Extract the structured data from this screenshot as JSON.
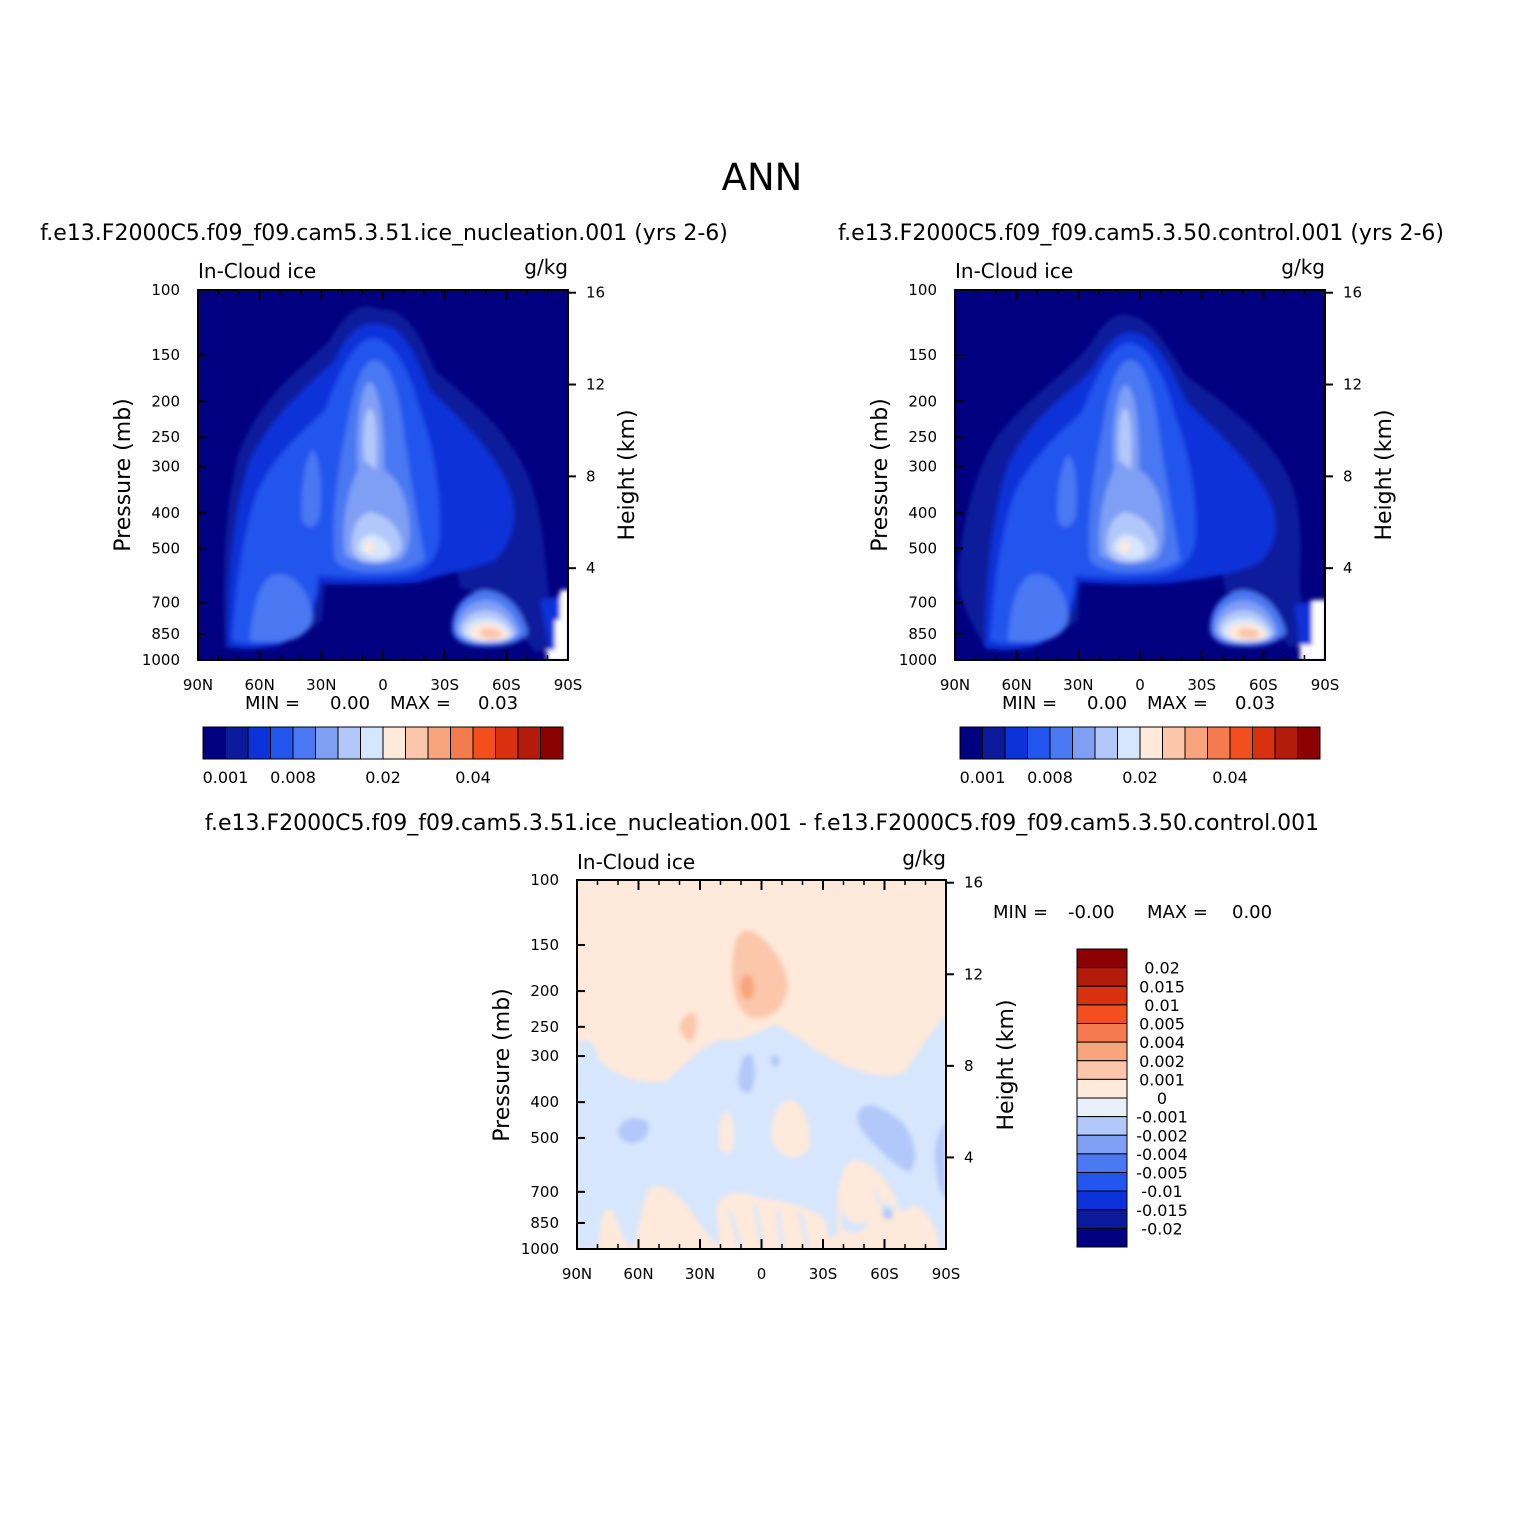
{
  "figure": {
    "title": "ANN"
  },
  "axes_common": {
    "xticks": [
      "90N",
      "60N",
      "30N",
      "0",
      "30S",
      "60S",
      "90S"
    ],
    "yticks_pressure": [
      "100",
      "150",
      "200",
      "250",
      "300",
      "400",
      "500",
      "700",
      "850",
      "1000"
    ],
    "yticks_height": [
      "16",
      "12",
      "8",
      "4"
    ],
    "ylabel_left": "Pressure (mb)",
    "ylabel_right": "Height (km)",
    "variable_label": "In-Cloud ice",
    "units_label": "g/kg"
  },
  "chart_data": [
    {
      "type": "heatmap",
      "title": "f.e13.F2000C5.f09_f09.cam5.3.51.ice_nucleation.001 (yrs 2-6)",
      "variable": "In-Cloud ice",
      "units": "g/kg",
      "xlim": [
        90,
        -90
      ],
      "ylim_pressure": [
        1000,
        100
      ],
      "stats": {
        "min_label": "MIN =",
        "min_value": "0.00",
        "max_label": "MAX =",
        "max_value": "0.03"
      },
      "colorbar": {
        "orientation": "horizontal",
        "colors": [
          "#000080",
          "#0a1a9b",
          "#0c33d9",
          "#2155ee",
          "#4a78f2",
          "#7f9ff5",
          "#b2c8fa",
          "#d6e6fd",
          "#ffe9da",
          "#fcc6ab",
          "#f8a47c",
          "#f47b4d",
          "#f24e1e",
          "#d9300f",
          "#b31b0b",
          "#8b0000"
        ],
        "tick_labels": [
          "0.001",
          "0.008",
          "0.02",
          "0.04"
        ]
      }
    },
    {
      "type": "heatmap",
      "title": "f.e13.F2000C5.f09_f09.cam5.3.50.control.001 (yrs 2-6)",
      "variable": "In-Cloud ice",
      "units": "g/kg",
      "xlim": [
        90,
        -90
      ],
      "ylim_pressure": [
        1000,
        100
      ],
      "stats": {
        "min_label": "MIN =",
        "min_value": "0.00",
        "max_label": "MAX =",
        "max_value": "0.03"
      },
      "colorbar": {
        "orientation": "horizontal",
        "colors": [
          "#000080",
          "#0a1a9b",
          "#0c33d9",
          "#2155ee",
          "#4a78f2",
          "#7f9ff5",
          "#b2c8fa",
          "#d6e6fd",
          "#ffe9da",
          "#fcc6ab",
          "#f8a47c",
          "#f47b4d",
          "#f24e1e",
          "#d9300f",
          "#b31b0b",
          "#8b0000"
        ],
        "tick_labels": [
          "0.001",
          "0.008",
          "0.02",
          "0.04"
        ]
      }
    },
    {
      "type": "heatmap",
      "title": "f.e13.F2000C5.f09_f09.cam5.3.51.ice_nucleation.001 - f.e13.F2000C5.f09_f09.cam5.3.50.control.001",
      "variable": "In-Cloud ice",
      "units": "g/kg",
      "xlim": [
        90,
        -90
      ],
      "ylim_pressure": [
        1000,
        100
      ],
      "stats": {
        "min_label": "MIN =",
        "min_value": "-0.00",
        "max_label": "MAX =",
        "max_value": "0.00"
      },
      "colorbar": {
        "orientation": "vertical",
        "colors_top_to_bottom": [
          "#8b0000",
          "#b31b0b",
          "#d9300f",
          "#f24e1e",
          "#f47b4d",
          "#f8a47c",
          "#fcc6ab",
          "#ffe9da",
          "#e8f0fb",
          "#b2c8fa",
          "#7f9ff5",
          "#4a78f2",
          "#2155ee",
          "#0c33d9",
          "#0a1a9b",
          "#000080"
        ],
        "tick_labels_top_to_bottom": [
          "0.02",
          "0.015",
          "0.01",
          "0.005",
          "0.004",
          "0.002",
          "0.001",
          "0",
          "-0.001",
          "-0.002",
          "-0.004",
          "-0.005",
          "-0.01",
          "-0.015",
          "-0.02"
        ]
      }
    }
  ]
}
